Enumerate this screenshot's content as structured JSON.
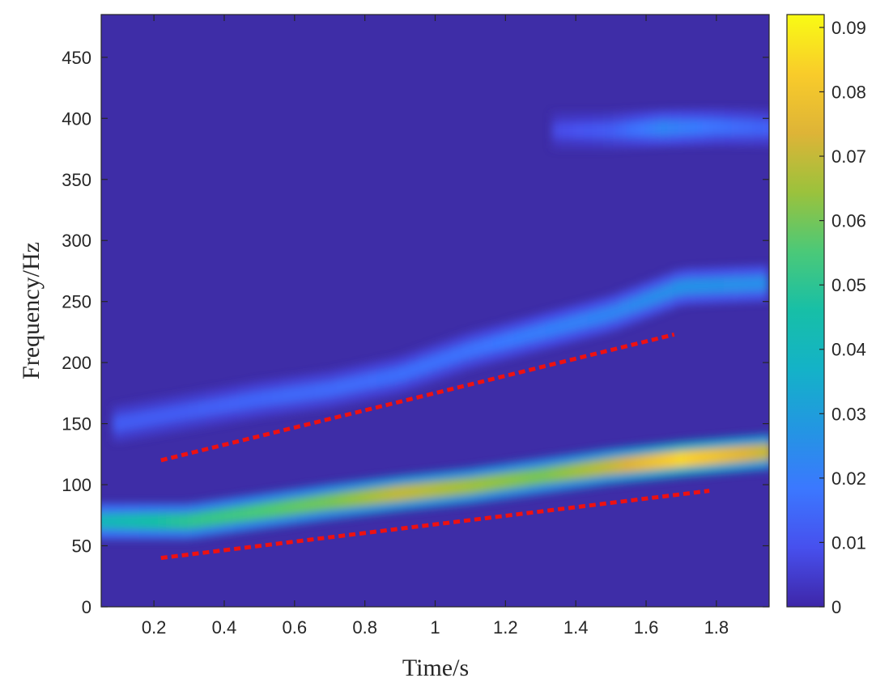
{
  "chart_data": {
    "type": "heatmap",
    "title": "",
    "xlabel": "Time/s",
    "ylabel": "Frequency/Hz",
    "xlim": [
      0.05,
      1.95
    ],
    "ylim": [
      0,
      485
    ],
    "x_ticks": [
      "0.2",
      "0.4",
      "0.6",
      "0.8",
      "1",
      "1.2",
      "1.4",
      "1.6",
      "1.8"
    ],
    "y_ticks": [
      "0",
      "50",
      "100",
      "150",
      "200",
      "250",
      "300",
      "350",
      "400",
      "450"
    ],
    "colorbar": {
      "colormap": "parula",
      "range": [
        0,
        0.092
      ],
      "ticks": [
        "0",
        "0.01",
        "0.02",
        "0.03",
        "0.04",
        "0.05",
        "0.06",
        "0.07",
        "0.08",
        "0.09"
      ]
    },
    "ridges": [
      {
        "t": [
          0.05,
          0.3,
          0.5,
          0.7,
          0.9,
          1.1,
          1.3,
          1.5,
          1.7,
          1.95
        ],
        "f": [
          70,
          70,
          78,
          86,
          93,
          99,
          107,
          115,
          121,
          127
        ],
        "amplitude": [
          0.04,
          0.05,
          0.055,
          0.06,
          0.07,
          0.065,
          0.06,
          0.07,
          0.085,
          0.07
        ]
      },
      {
        "t": [
          0.1,
          0.3,
          0.5,
          0.7,
          0.9,
          1.1,
          1.3,
          1.5,
          1.7,
          1.95
        ],
        "f": [
          150,
          160,
          170,
          178,
          190,
          210,
          225,
          240,
          262,
          265
        ],
        "amplitude": [
          0.012,
          0.012,
          0.014,
          0.015,
          0.016,
          0.017,
          0.02,
          0.022,
          0.026,
          0.025
        ]
      },
      {
        "t": [
          1.35,
          1.5,
          1.65,
          1.8,
          1.95
        ],
        "f": [
          390,
          390,
          392,
          393,
          392
        ],
        "amplitude": [
          0.008,
          0.012,
          0.022,
          0.017,
          0.013
        ]
      }
    ],
    "annotations": [
      {
        "type": "dashed-line",
        "color": "#ee1111",
        "t": [
          0.22,
          1.68
        ],
        "f": [
          120,
          223
        ]
      },
      {
        "type": "dashed-line",
        "color": "#ee1111",
        "t": [
          0.22,
          1.78
        ],
        "f": [
          40,
          95
        ]
      }
    ]
  }
}
